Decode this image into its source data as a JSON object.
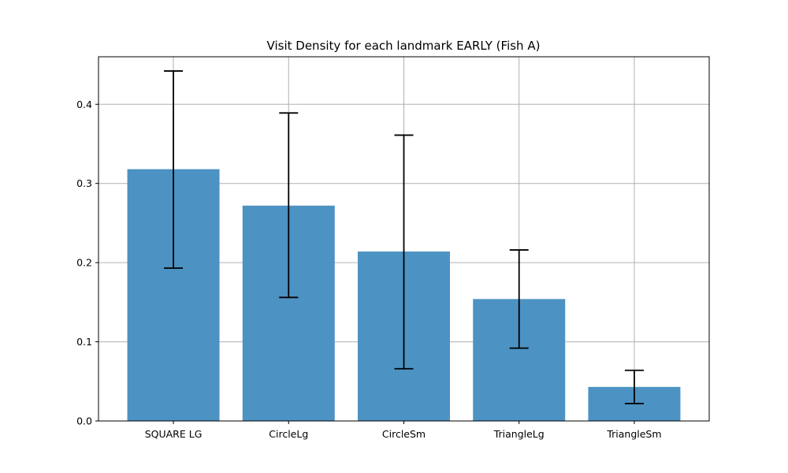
{
  "chart_data": {
    "type": "bar",
    "title": "Visit Density for each landmark EARLY (Fish A)",
    "xlabel": "",
    "ylabel": "",
    "categories": [
      "SQUARE LG",
      "CircleLg",
      "CircleSm",
      "TriangleLg",
      "TriangleSm"
    ],
    "values": [
      0.318,
      0.272,
      0.214,
      0.154,
      0.043
    ],
    "error_low": [
      0.193,
      0.156,
      0.066,
      0.092,
      0.022
    ],
    "error_high": [
      0.442,
      0.389,
      0.361,
      0.216,
      0.064
    ],
    "ylim": [
      0,
      0.46
    ],
    "yticks": [
      0.0,
      0.1,
      0.2,
      0.3,
      0.4
    ],
    "ytick_labels": [
      "0.0",
      "0.1",
      "0.2",
      "0.3",
      "0.4"
    ],
    "grid": true,
    "bar_color": "#4c92c3"
  }
}
